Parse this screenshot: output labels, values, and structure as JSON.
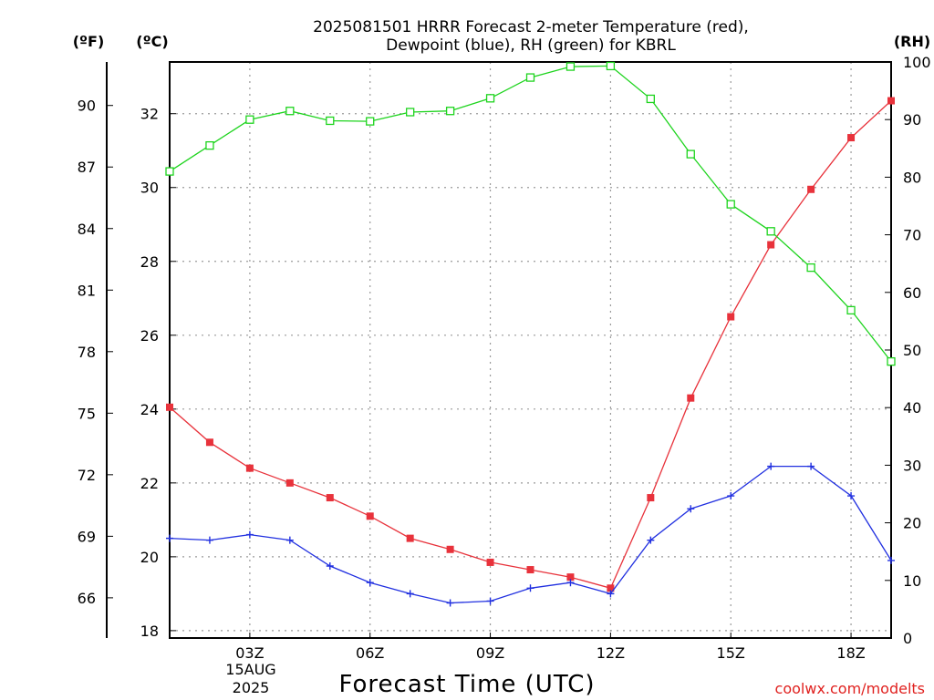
{
  "title": {
    "line1": "2025081501 HRRR Forecast 2-meter Temperature (red),",
    "line2": "Dewpoint (blue), RH (green) for KBRL"
  },
  "units": {
    "fahrenheit": "(ºF)",
    "celsius": "(ºC)",
    "rh": "(RH)"
  },
  "xaxis_title": "Forecast Time (UTC)",
  "date_label": {
    "day": "15AUG",
    "year": "2025"
  },
  "watermark": "coolwx.com/modelts",
  "colors": {
    "temperature": "#e8323b",
    "dewpoint": "#2130e0",
    "rh": "#1ed41e",
    "grid": "#9a9a9a"
  },
  "chart_data": {
    "type": "line",
    "x": [
      "01Z",
      "02Z",
      "03Z",
      "04Z",
      "05Z",
      "06Z",
      "07Z",
      "08Z",
      "09Z",
      "10Z",
      "11Z",
      "12Z",
      "13Z",
      "14Z",
      "15Z",
      "16Z",
      "17Z",
      "18Z",
      "19Z"
    ],
    "x_tick_labels": [
      "03Z",
      "06Z",
      "09Z",
      "12Z",
      "15Z",
      "18Z"
    ],
    "celsius_axis": {
      "range": [
        17.8,
        33.4
      ],
      "ticks": [
        18,
        20,
        22,
        24,
        26,
        28,
        30,
        32
      ]
    },
    "fahrenheit_axis": {
      "ticks": [
        66,
        69,
        72,
        75,
        78,
        81,
        84,
        87,
        90
      ]
    },
    "rh_axis": {
      "range": [
        0,
        100
      ],
      "ticks": [
        0,
        10,
        20,
        30,
        40,
        50,
        60,
        70,
        80,
        90,
        100
      ]
    },
    "grid": true,
    "series": [
      {
        "name": "Temperature",
        "axis": "celsius",
        "marker": "filled-square",
        "values": [
          24.05,
          23.1,
          22.4,
          22.0,
          21.6,
          21.1,
          20.5,
          20.2,
          19.85,
          19.65,
          19.45,
          19.15,
          21.6,
          24.3,
          26.5,
          28.45,
          29.95,
          31.35,
          32.35
        ]
      },
      {
        "name": "Dewpoint",
        "axis": "celsius",
        "marker": "plus",
        "values": [
          20.5,
          20.45,
          20.6,
          20.45,
          19.75,
          19.3,
          19.0,
          18.75,
          18.8,
          19.15,
          19.3,
          19.0,
          20.45,
          21.3,
          21.65,
          22.45,
          22.45,
          21.65,
          19.9
        ]
      },
      {
        "name": "RH",
        "axis": "rh",
        "marker": "open-square",
        "values": [
          81,
          85.5,
          90,
          91.5,
          89.8,
          89.7,
          91.3,
          91.5,
          93.7,
          97.3,
          99.2,
          99.3,
          93.6,
          84,
          75.3,
          70.6,
          64.3,
          56.9,
          48
        ]
      }
    ]
  }
}
